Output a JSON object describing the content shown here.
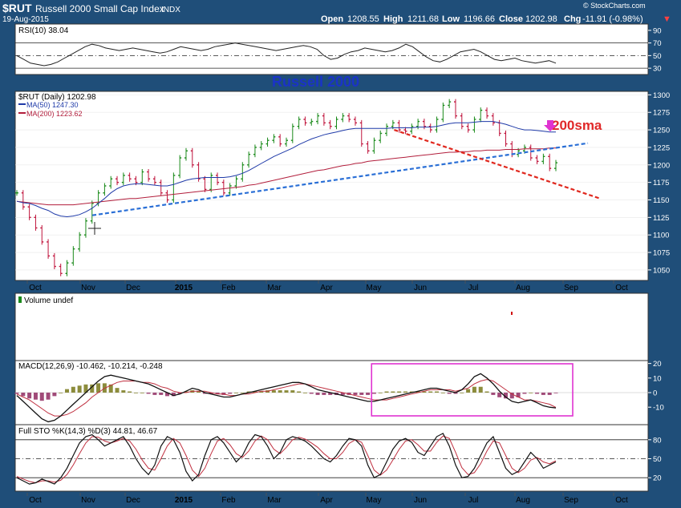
{
  "header": {
    "symbol": "$RUT",
    "name": "Russell 2000 Small Cap Index",
    "exchange": "INDX",
    "date": "19-Aug-2015",
    "open_label": "Open",
    "open": "1208.55",
    "high_label": "High",
    "high": "1211.68",
    "low_label": "Low",
    "low": "1196.66",
    "close_label": "Close",
    "close": "1202.98",
    "chg_label": "Chg",
    "chg": "-11.91 (-0.98%)",
    "chg_arrow": "▼",
    "brand": "© StockCharts.com"
  },
  "colors": {
    "frame": "#1f4e79",
    "up": "#1a8a1a",
    "down": "#c0143c",
    "ma50": "#1f3aa8",
    "ma200": "#b21e3c",
    "trend_blue": "#2a6fd6",
    "trend_red": "#e0281e",
    "annotation_blue": "#1a33c8",
    "annotation_red": "#e02828",
    "magenta": "#e033d0",
    "volume_dot": "#d01010"
  },
  "chart_data": [
    {
      "type": "line",
      "panel": "rsi",
      "title": "RSI(10) 38.04",
      "ylim": [
        20,
        100
      ],
      "yticks": [
        30,
        50,
        70,
        90
      ],
      "reference_lines": [
        30,
        50,
        70
      ],
      "values": [
        50,
        44,
        38,
        36,
        34,
        36,
        40,
        46,
        52,
        58,
        64,
        68,
        66,
        62,
        60,
        58,
        60,
        62,
        60,
        58,
        56,
        54,
        56,
        60,
        64,
        62,
        60,
        58,
        60,
        64,
        66,
        68,
        70,
        68,
        66,
        64,
        62,
        60,
        58,
        60,
        62,
        64,
        66,
        64,
        60,
        50,
        44,
        46,
        52,
        56,
        58,
        62,
        60,
        58,
        56,
        58,
        62,
        68,
        64,
        56,
        48,
        42,
        40,
        44,
        50,
        56,
        58,
        60,
        56,
        50,
        44,
        42,
        44,
        46,
        42,
        40,
        38,
        40,
        42,
        38
      ]
    },
    {
      "type": "candlestick",
      "panel": "price",
      "title": "$RUT (Daily) 1202.98",
      "series_labels": [
        "MA(50) 1247.30",
        "MA(200) 1223.62"
      ],
      "ylim": [
        1035,
        1305
      ],
      "yticks": [
        1050,
        1075,
        1100,
        1125,
        1150,
        1175,
        1200,
        1225,
        1250,
        1275,
        1300
      ],
      "x_ticks": [
        "Oct",
        "Nov",
        "Dec",
        "2015",
        "Feb",
        "Mar",
        "Apr",
        "May",
        "Jun",
        "Jul",
        "Aug",
        "Sep",
        "Oct"
      ],
      "close": [
        1160,
        1140,
        1125,
        1110,
        1090,
        1070,
        1055,
        1045,
        1060,
        1080,
        1100,
        1120,
        1145,
        1160,
        1170,
        1180,
        1175,
        1185,
        1180,
        1175,
        1190,
        1180,
        1175,
        1160,
        1150,
        1185,
        1210,
        1220,
        1200,
        1180,
        1165,
        1185,
        1175,
        1160,
        1170,
        1180,
        1200,
        1215,
        1225,
        1230,
        1235,
        1240,
        1230,
        1235,
        1255,
        1265,
        1260,
        1262,
        1270,
        1260,
        1255,
        1265,
        1270,
        1265,
        1260,
        1230,
        1220,
        1235,
        1245,
        1255,
        1260,
        1250,
        1248,
        1255,
        1262,
        1255,
        1250,
        1265,
        1285,
        1290,
        1270,
        1255,
        1250,
        1265,
        1278,
        1270,
        1260,
        1245,
        1230,
        1215,
        1220,
        1225,
        1210,
        1205,
        1212,
        1195,
        1203
      ],
      "ma50": [
        1148,
        1146,
        1145,
        1142,
        1138,
        1135,
        1130,
        1127,
        1126,
        1127,
        1129,
        1133,
        1138,
        1145,
        1152,
        1160,
        1166,
        1170,
        1172,
        1173,
        1173,
        1172,
        1171,
        1170,
        1170,
        1172,
        1175,
        1178,
        1180,
        1181,
        1182,
        1182,
        1182,
        1182,
        1183,
        1185,
        1188,
        1192,
        1197,
        1202,
        1207,
        1212,
        1216,
        1220,
        1224,
        1229,
        1233,
        1237,
        1240,
        1243,
        1245,
        1247,
        1249,
        1251,
        1252,
        1252,
        1252,
        1252,
        1252,
        1252,
        1253,
        1253,
        1253,
        1253,
        1254,
        1254,
        1254,
        1255,
        1257,
        1259,
        1260,
        1260,
        1260,
        1261,
        1262,
        1262,
        1262,
        1260,
        1258,
        1255,
        1252,
        1250,
        1250,
        1249,
        1248,
        1247,
        1247
      ],
      "ma200": [
        1148,
        1147,
        1146,
        1145,
        1144,
        1143,
        1143,
        1143,
        1143,
        1143,
        1144,
        1145,
        1146,
        1147,
        1148,
        1149,
        1150,
        1151,
        1152,
        1152,
        1153,
        1154,
        1155,
        1156,
        1157,
        1158,
        1159,
        1160,
        1161,
        1162,
        1163,
        1164,
        1165,
        1166,
        1167,
        1168,
        1169,
        1171,
        1172,
        1174,
        1176,
        1178,
        1180,
        1182,
        1184,
        1186,
        1188,
        1190,
        1192,
        1193,
        1195,
        1197,
        1199,
        1200,
        1202,
        1203,
        1205,
        1206,
        1207,
        1208,
        1209,
        1210,
        1211,
        1212,
        1213,
        1214,
        1215,
        1216,
        1217,
        1218,
        1218,
        1219,
        1219,
        1220,
        1220,
        1221,
        1221,
        1221,
        1222,
        1222,
        1222,
        1223,
        1223,
        1223,
        1223,
        1224,
        1224
      ],
      "trendlines": [
        {
          "color_key": "trend_blue",
          "from_index": 14,
          "from": 1128,
          "to_index": 100,
          "to": 1231
        },
        {
          "color_key": "trend_red",
          "from_index": 70,
          "from": 1250,
          "to_index": 100,
          "to": 1152
        }
      ]
    },
    {
      "type": "bar",
      "panel": "volume",
      "title": "Volume undef",
      "values": []
    },
    {
      "type": "bar+line",
      "panel": "macd",
      "title": "MACD(12,26,9) -10.462, -10.214, -0.248",
      "ylim": [
        -22,
        22
      ],
      "yticks": [
        -10,
        0,
        10,
        20
      ],
      "macd": [
        -2,
        -6,
        -10,
        -14,
        -18,
        -20,
        -19,
        -16,
        -12,
        -8,
        -4,
        0,
        4,
        8,
        11,
        12,
        11,
        10,
        9,
        8,
        7,
        6,
        4,
        2,
        0,
        -2,
        -1,
        1,
        3,
        2,
        0,
        -1,
        -2,
        -3,
        -3,
        -2,
        -1,
        0,
        1,
        2,
        3,
        4,
        5,
        6,
        7,
        7,
        6,
        4,
        2,
        1,
        0,
        -1,
        -2,
        -3,
        -4,
        -5,
        -6,
        -6,
        -5,
        -4,
        -3,
        -2,
        -1,
        0,
        1,
        2,
        3,
        3,
        2,
        1,
        0,
        2,
        6,
        11,
        13,
        10,
        6,
        1,
        -3,
        -6,
        -7,
        -6,
        -5,
        -7,
        -9,
        -10,
        -10.5
      ],
      "signal": [
        -1,
        -3,
        -5,
        -8,
        -11,
        -14,
        -16,
        -16,
        -15,
        -13,
        -10,
        -7,
        -3,
        0,
        3,
        5,
        7,
        8,
        8,
        8,
        7,
        7,
        6,
        4,
        3,
        1,
        0,
        0,
        1,
        1,
        1,
        0,
        -1,
        -1,
        -2,
        -2,
        -1,
        -1,
        0,
        1,
        1,
        2,
        3,
        4,
        5,
        6,
        6,
        5,
        4,
        3,
        2,
        1,
        0,
        -1,
        -2,
        -3,
        -4,
        -5,
        -5,
        -5,
        -4,
        -3,
        -2,
        -1,
        0,
        1,
        2,
        2,
        2,
        2,
        1,
        2,
        3,
        6,
        8,
        9,
        8,
        5,
        2,
        -1,
        -3,
        -5,
        -5,
        -6,
        -7,
        -8,
        -10.2
      ],
      "highlight_box": {
        "color_key": "magenta",
        "from_index": 67,
        "to_index": 100
      }
    },
    {
      "type": "line",
      "panel": "stochastic",
      "title": "Full STO %K(14,3) %D(3) 44.81, 46.67",
      "ylim": [
        0,
        100
      ],
      "yticks": [
        20,
        50,
        80
      ],
      "reference_lines": [
        20,
        50,
        80
      ],
      "k": [
        20,
        15,
        10,
        12,
        18,
        14,
        10,
        20,
        35,
        55,
        75,
        85,
        88,
        80,
        70,
        75,
        80,
        85,
        70,
        50,
        35,
        25,
        40,
        70,
        85,
        80,
        60,
        30,
        15,
        25,
        55,
        80,
        85,
        75,
        60,
        45,
        55,
        75,
        88,
        85,
        70,
        50,
        60,
        80,
        85,
        82,
        78,
        70,
        60,
        50,
        45,
        55,
        70,
        82,
        80,
        70,
        40,
        20,
        25,
        45,
        65,
        78,
        82,
        76,
        60,
        55,
        70,
        85,
        90,
        70,
        40,
        20,
        22,
        35,
        55,
        75,
        85,
        60,
        35,
        25,
        30,
        45,
        60,
        50,
        35,
        40,
        45
      ],
      "d": [
        22,
        18,
        14,
        12,
        15,
        15,
        13,
        16,
        25,
        40,
        58,
        75,
        85,
        84,
        78,
        75,
        78,
        82,
        78,
        65,
        48,
        35,
        32,
        50,
        70,
        82,
        75,
        55,
        32,
        22,
        35,
        58,
        78,
        82,
        72,
        58,
        52,
        62,
        78,
        86,
        80,
        65,
        58,
        68,
        80,
        84,
        81,
        75,
        68,
        58,
        50,
        50,
        60,
        74,
        80,
        76,
        55,
        32,
        24,
        32,
        48,
        65,
        78,
        80,
        72,
        62,
        62,
        76,
        86,
        82,
        60,
        36,
        25,
        28,
        42,
        62,
        78,
        75,
        55,
        35,
        28,
        35,
        48,
        52,
        45,
        42,
        46.7
      ]
    }
  ],
  "x_axis_labels": [
    "Oct",
    "Nov",
    "Dec",
    "2015",
    "Feb",
    "Mar",
    "Apr",
    "May",
    "Jun",
    "Jul",
    "Aug",
    "Sep",
    "Oct"
  ],
  "annotations": {
    "russell_label": "Russell 2000",
    "sma_label": "200sma"
  }
}
